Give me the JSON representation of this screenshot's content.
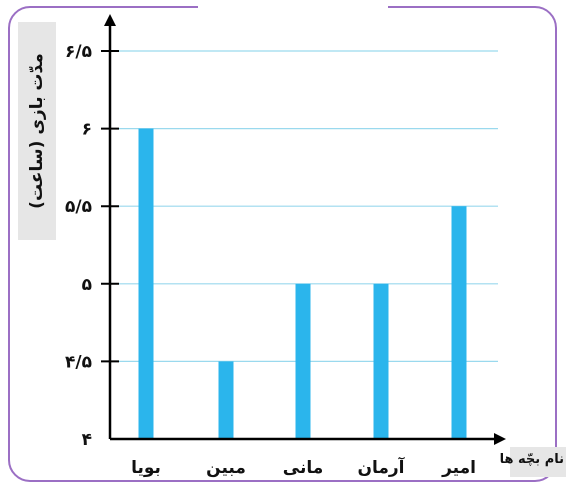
{
  "chart_data": {
    "type": "bar",
    "ylabel": "مدّت بازی (ساعت)",
    "xlabel": "نام بچّه ها",
    "categories": [
      "بویا",
      "مبین",
      "مانی",
      "آرمان",
      "امیر"
    ],
    "values": [
      6,
      4.5,
      5,
      5,
      5.5
    ],
    "ylim": [
      4,
      6.5
    ],
    "yticks": [
      4,
      4.5,
      5,
      5.5,
      6,
      6.5
    ],
    "ytick_labels": [
      "۴",
      "۴/۵",
      "۵",
      "۵/۵",
      "۶",
      "۶/۵"
    ],
    "grid": true,
    "colors": {
      "bar": "#2bb5ec",
      "grid": "#9ad9ee",
      "axis": "#000000",
      "frame": "#9b6fc4"
    }
  }
}
